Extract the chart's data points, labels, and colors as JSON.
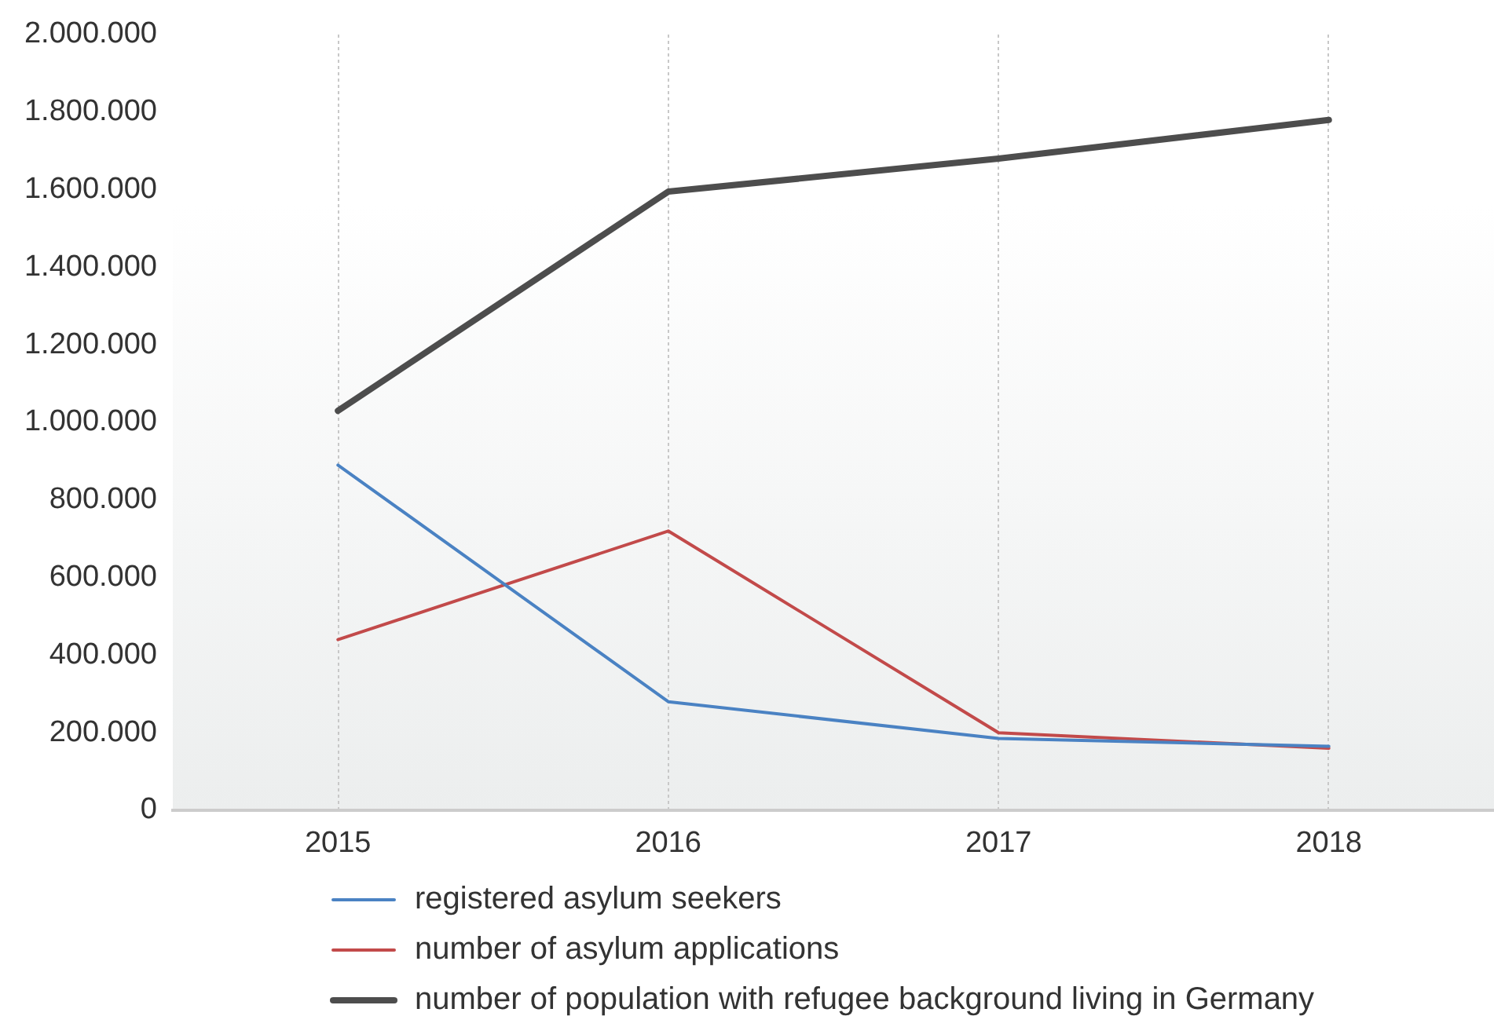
{
  "chart_data": {
    "type": "line",
    "categories": [
      "2015",
      "2016",
      "2017",
      "2018"
    ],
    "series": [
      {
        "name": "registered asylum seekers",
        "color": "#4a82c3",
        "values": [
          890000,
          280000,
          185000,
          165000
        ]
      },
      {
        "name": "number of asylum applications",
        "color": "#c24a4a",
        "values": [
          440000,
          720000,
          200000,
          160000
        ]
      },
      {
        "name": "number of population with refugee background living in Germany",
        "color": "#4d4d4d",
        "values": [
          1030000,
          1595000,
          1680000,
          1780000
        ]
      }
    ],
    "ylim": [
      0,
      2000000
    ],
    "yticks": [
      0,
      {
        "value": 200000,
        "label": "200.000"
      },
      {
        "value": 400000,
        "label": "400.000"
      },
      {
        "value": 600000,
        "label": "600.000"
      },
      {
        "value": 800000,
        "label": "800.000"
      },
      {
        "value": 1000000,
        "label": "1.000.000"
      },
      {
        "value": 1200000,
        "label": "1.200.000"
      },
      {
        "value": 1400000,
        "label": "1.400.000"
      },
      {
        "value": 1600000,
        "label": "1.600.000"
      },
      {
        "value": 1800000,
        "label": "1.800.000"
      },
      {
        "value": 2000000,
        "label": "2.000.000"
      }
    ],
    "grid": "x",
    "legend": "bottom"
  }
}
